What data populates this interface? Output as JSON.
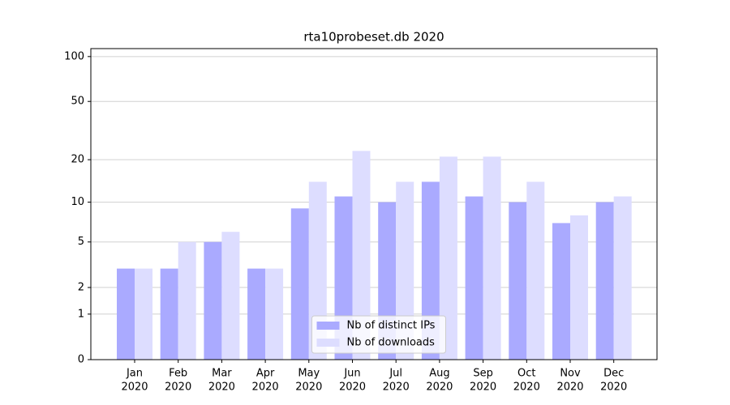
{
  "chart_data": {
    "type": "bar",
    "title": "rta10probeset.db 2020",
    "categories": [
      [
        "Jan",
        "2020"
      ],
      [
        "Feb",
        "2020"
      ],
      [
        "Mar",
        "2020"
      ],
      [
        "Apr",
        "2020"
      ],
      [
        "May",
        "2020"
      ],
      [
        "Jun",
        "2020"
      ],
      [
        "Jul",
        "2020"
      ],
      [
        "Aug",
        "2020"
      ],
      [
        "Sep",
        "2020"
      ],
      [
        "Oct",
        "2020"
      ],
      [
        "Nov",
        "2020"
      ],
      [
        "Dec",
        "2020"
      ]
    ],
    "series": [
      {
        "name": "Nb of distinct IPs",
        "color": "#aaaaff",
        "values": [
          3,
          3,
          5,
          3,
          9,
          11,
          10,
          14,
          11,
          10,
          7,
          10
        ]
      },
      {
        "name": "Nb of downloads",
        "color": "#ddddff",
        "values": [
          3,
          5,
          6,
          3,
          14,
          23,
          14,
          21,
          21,
          14,
          8,
          11
        ]
      }
    ],
    "yscale": "log1p",
    "ylim": [
      0,
      113
    ],
    "yticks": [
      0,
      1,
      2,
      5,
      10,
      20,
      50,
      100
    ],
    "grid": true,
    "legend": "lower center"
  }
}
